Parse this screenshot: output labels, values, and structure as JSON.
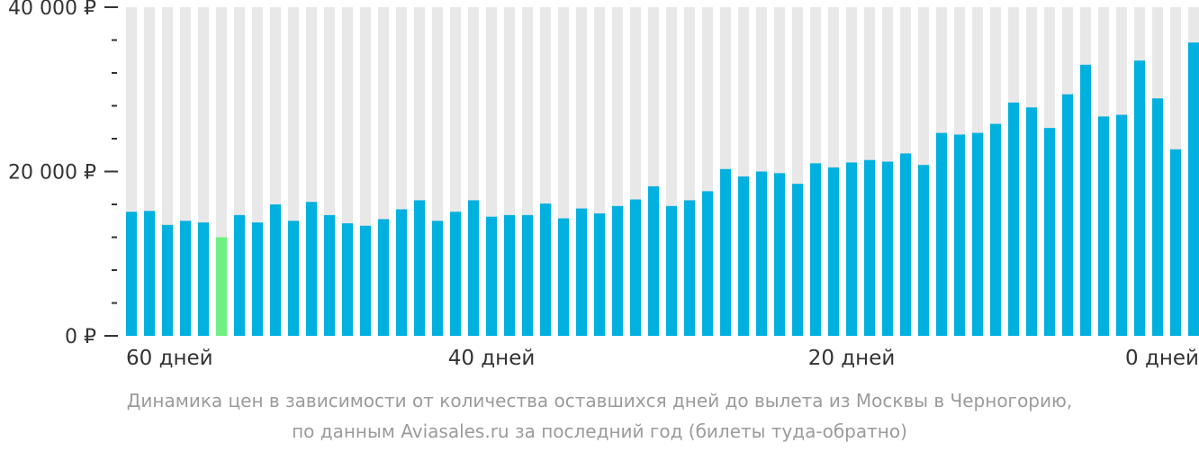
{
  "chart_data": {
    "type": "bar",
    "title": "",
    "xlabel": "",
    "ylabel": "",
    "ylim": [
      0,
      40000
    ],
    "y_ticks": [
      {
        "value": 40000,
        "label": "40 000 ₽"
      },
      {
        "value": 20000,
        "label": "20 000 ₽"
      },
      {
        "value": 0,
        "label": "0 ₽"
      }
    ],
    "y_minor_step": 4000,
    "x_tick_labels": [
      {
        "index": 0,
        "label": "60 дней"
      },
      {
        "index": 20,
        "label": "40 дней"
      },
      {
        "index": 40,
        "label": "20 дней"
      },
      {
        "index": 59,
        "label": "0 дней"
      }
    ],
    "values": [
      15100,
      15200,
      13500,
      14000,
      13800,
      12000,
      14700,
      13800,
      16000,
      14000,
      16300,
      14700,
      13700,
      13400,
      14200,
      15400,
      16500,
      14000,
      15100,
      16500,
      14500,
      14700,
      14700,
      16100,
      14300,
      15500,
      14900,
      15800,
      16600,
      18200,
      15800,
      16500,
      17600,
      20300,
      19400,
      20000,
      19800,
      18500,
      21000,
      20500,
      21100,
      21400,
      21200,
      22200,
      20800,
      24700,
      24500,
      24700,
      25800,
      28400,
      27800,
      25300,
      29400,
      33000,
      26700,
      26900,
      33500,
      28900,
      22700,
      35700
    ],
    "highlight_index": 5,
    "colors": {
      "bar": "#00b0de",
      "highlight": "#6ff082",
      "background_bar": "#e8e8e8",
      "axis": "#333333"
    },
    "caption_lines": [
      "Динамика цен в зависимости от количества оставшихся дней до вылета из Москвы в Черногорию,",
      "по данным Aviasales.ru за последний год (билеты туда-обратно)"
    ]
  }
}
